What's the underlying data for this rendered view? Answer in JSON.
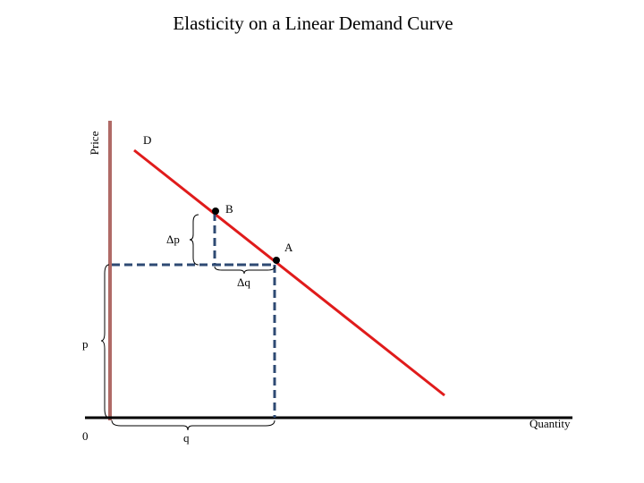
{
  "title": "Elasticity on a Linear Demand Curve",
  "axes": {
    "y_label": "Price",
    "x_label": "Quantity",
    "origin": "0"
  },
  "labels": {
    "curve": "D",
    "point_b": "B",
    "point_a": "A",
    "delta_p": "Δp",
    "delta_q": "Δq",
    "p": "p",
    "q": "q"
  }
}
